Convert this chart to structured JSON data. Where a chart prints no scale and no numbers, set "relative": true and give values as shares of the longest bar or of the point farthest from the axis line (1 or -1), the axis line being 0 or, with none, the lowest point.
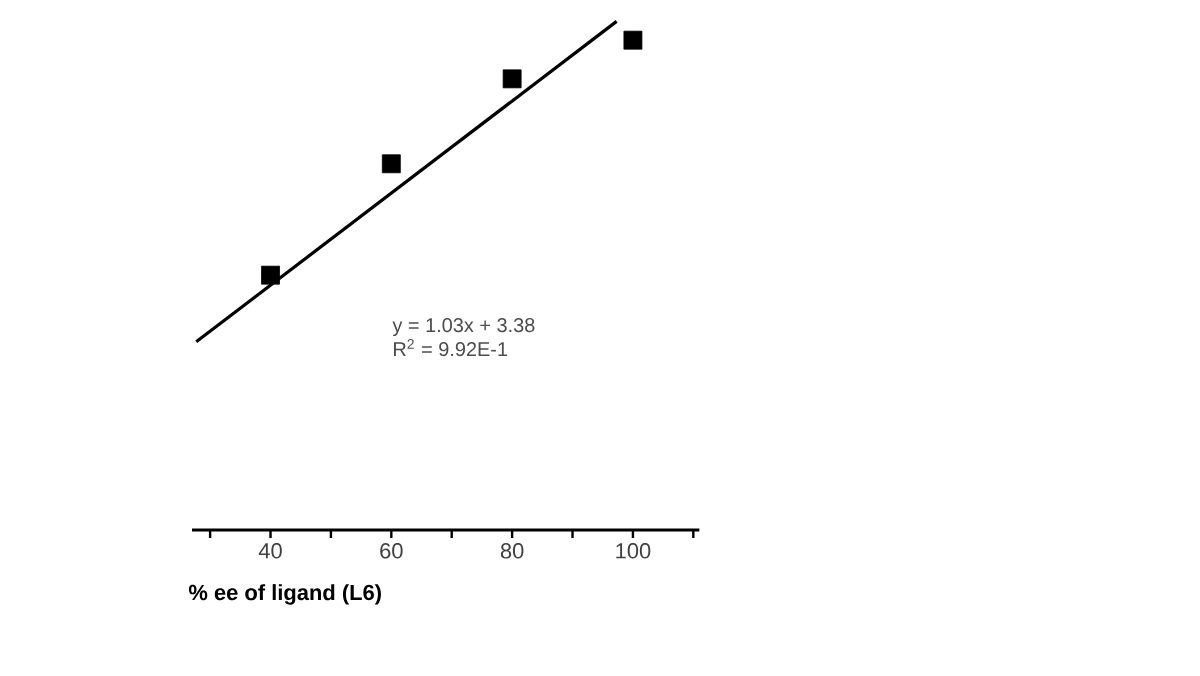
{
  "chart_data": {
    "type": "scatter",
    "xlabel": "% ee of ligand (L6)",
    "relative": true,
    "xlim": [
      27,
      111
    ],
    "xticks": [
      {
        "value": 30,
        "label": null
      },
      40,
      {
        "value": 50,
        "label": null
      },
      60,
      {
        "value": 70,
        "label": null
      },
      80,
      {
        "value": 90,
        "label": null
      },
      100,
      {
        "value": 110,
        "label": null
      }
    ],
    "annotations": [
      "y = 1.03x + 3.38",
      "R$^{2}$ = 9.92E-1"
    ],
    "series": [
      {
        "color": "#000000",
        "marker": "square",
        "x": [
          40,
          60,
          80,
          100
        ],
        "values": [
          0.501,
          0.72,
          0.887,
          0.963
        ]
      },
      {
        "type": "line",
        "color": "#000000",
        "marker": "none",
        "x": [
          27.7,
          97.3
        ],
        "values": [
          0.37,
          1
        ]
      }
    ]
  }
}
